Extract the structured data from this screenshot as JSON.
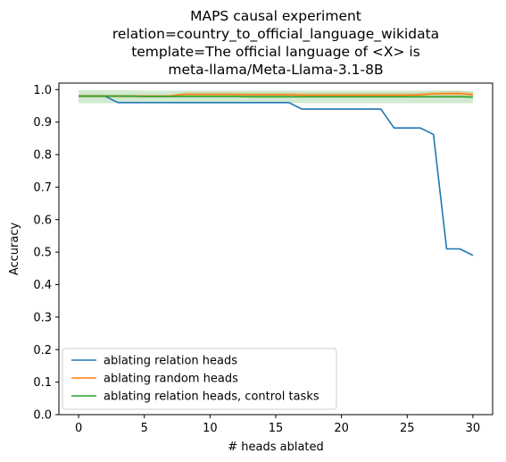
{
  "chart_data": {
    "type": "line",
    "title_lines": [
      "MAPS causal experiment",
      "relation=country_to_official_language_wikidata",
      "template=The official language of <X> is",
      "meta-llama/Meta-Llama-3.1-8B"
    ],
    "xlabel": "# heads ablated",
    "ylabel": "Accuracy",
    "xlim": [
      -1.5,
      31.5
    ],
    "ylim": [
      0.0,
      1.02
    ],
    "xticks": [
      0,
      5,
      10,
      15,
      20,
      25,
      30
    ],
    "yticks": [
      0.0,
      0.1,
      0.2,
      0.3,
      0.4,
      0.5,
      0.6,
      0.7,
      0.8,
      0.9,
      1.0
    ],
    "xtick_labels": [
      "0",
      "5",
      "10",
      "15",
      "20",
      "25",
      "30"
    ],
    "ytick_labels": [
      "0.0",
      "0.1",
      "0.2",
      "0.3",
      "0.4",
      "0.5",
      "0.6",
      "0.7",
      "0.8",
      "0.9",
      "1.0"
    ],
    "grid": false,
    "legend_position": "lower-left",
    "x": [
      0,
      1,
      2,
      3,
      4,
      5,
      6,
      7,
      8,
      9,
      10,
      11,
      12,
      13,
      14,
      15,
      16,
      17,
      18,
      19,
      20,
      21,
      22,
      23,
      24,
      25,
      26,
      27,
      28,
      29,
      30
    ],
    "series": [
      {
        "name": "ablating relation heads",
        "color": "#1f77b4",
        "values": [
          0.98,
          0.98,
          0.98,
          0.96,
          0.96,
          0.96,
          0.96,
          0.96,
          0.96,
          0.96,
          0.96,
          0.96,
          0.96,
          0.96,
          0.96,
          0.96,
          0.96,
          0.94,
          0.94,
          0.94,
          0.94,
          0.94,
          0.94,
          0.94,
          0.882,
          0.882,
          0.882,
          0.862,
          0.51,
          0.51,
          0.49
        ]
      },
      {
        "name": "ablating random heads",
        "color": "#ff7f0e",
        "values": [
          0.98,
          0.98,
          0.98,
          0.98,
          0.98,
          0.98,
          0.98,
          0.98,
          0.985,
          0.985,
          0.985,
          0.985,
          0.985,
          0.984,
          0.984,
          0.984,
          0.984,
          0.983,
          0.983,
          0.983,
          0.983,
          0.983,
          0.983,
          0.983,
          0.983,
          0.983,
          0.984,
          0.987,
          0.988,
          0.988,
          0.984
        ],
        "band_low": [
          0.975,
          0.975,
          0.975,
          0.975,
          0.975,
          0.975,
          0.975,
          0.975,
          0.978,
          0.978,
          0.978,
          0.978,
          0.978,
          0.977,
          0.977,
          0.977,
          0.977,
          0.976,
          0.976,
          0.976,
          0.976,
          0.976,
          0.976,
          0.976,
          0.976,
          0.976,
          0.977,
          0.98,
          0.98,
          0.98,
          0.976
        ],
        "band_high": [
          0.985,
          0.985,
          0.985,
          0.985,
          0.985,
          0.985,
          0.985,
          0.985,
          0.992,
          0.992,
          0.992,
          0.992,
          0.992,
          0.991,
          0.991,
          0.991,
          0.991,
          0.99,
          0.99,
          0.99,
          0.99,
          0.99,
          0.99,
          0.99,
          0.99,
          0.99,
          0.991,
          0.994,
          0.995,
          0.995,
          0.992
        ]
      },
      {
        "name": "ablating relation heads, control tasks",
        "color": "#2ca02c",
        "values": [
          0.98,
          0.98,
          0.98,
          0.98,
          0.98,
          0.979,
          0.979,
          0.979,
          0.979,
          0.979,
          0.979,
          0.979,
          0.979,
          0.978,
          0.978,
          0.978,
          0.978,
          0.978,
          0.978,
          0.978,
          0.978,
          0.978,
          0.978,
          0.978,
          0.978,
          0.978,
          0.978,
          0.978,
          0.978,
          0.978,
          0.977
        ],
        "band_low": [
          0.958,
          0.958,
          0.958,
          0.958,
          0.958,
          0.958,
          0.958,
          0.958,
          0.958,
          0.958,
          0.958,
          0.958,
          0.958,
          0.958,
          0.958,
          0.958,
          0.958,
          0.958,
          0.958,
          0.958,
          0.958,
          0.958,
          0.958,
          0.958,
          0.958,
          0.958,
          0.958,
          0.958,
          0.958,
          0.958,
          0.958
        ],
        "band_high": [
          0.998,
          0.998,
          0.998,
          0.998,
          0.998,
          0.997,
          0.997,
          0.997,
          0.997,
          0.997,
          0.997,
          0.997,
          0.997,
          0.997,
          0.997,
          0.997,
          0.997,
          0.997,
          0.997,
          0.997,
          0.997,
          0.997,
          0.997,
          0.997,
          0.997,
          0.997,
          0.997,
          0.997,
          0.997,
          0.997,
          0.996
        ]
      }
    ]
  }
}
